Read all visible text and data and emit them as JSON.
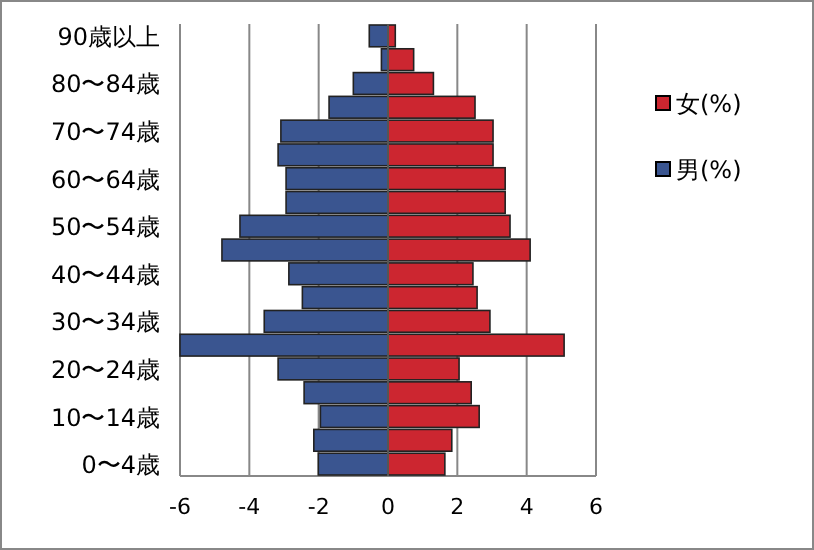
{
  "chart_data": {
    "type": "bar",
    "orientation": "horizontal",
    "categories": [
      "90歳以上",
      null,
      "80〜84歳",
      null,
      "70〜74歳",
      null,
      "60〜64歳",
      null,
      "50〜54歳",
      null,
      "40〜44歳",
      null,
      "30〜34歳",
      null,
      "20〜24歳",
      null,
      "10〜14歳",
      null,
      "0〜4歳"
    ],
    "series": [
      {
        "name": "女(%)",
        "color": "#cc2630",
        "values": [
          0.21,
          0.74,
          1.31,
          2.51,
          3.03,
          3.03,
          3.38,
          3.38,
          3.52,
          4.1,
          2.45,
          2.57,
          2.94,
          5.08,
          2.05,
          2.4,
          2.63,
          1.84,
          1.64
        ]
      },
      {
        "name": "男(%)",
        "color": "#3a5590",
        "values": [
          -0.54,
          -0.19,
          -1.0,
          -1.7,
          -3.09,
          -3.17,
          -2.94,
          -2.94,
          -4.27,
          -4.79,
          -2.86,
          -2.47,
          -3.57,
          -6,
          -3.17,
          -2.42,
          -1.95,
          -2.14,
          -2.01
        ]
      }
    ],
    "xlim": [
      -6,
      6
    ],
    "xticks": [
      -6,
      -4,
      -2,
      0,
      2,
      4,
      6
    ],
    "grid": "x",
    "legend": "right",
    "stacked": true
  }
}
